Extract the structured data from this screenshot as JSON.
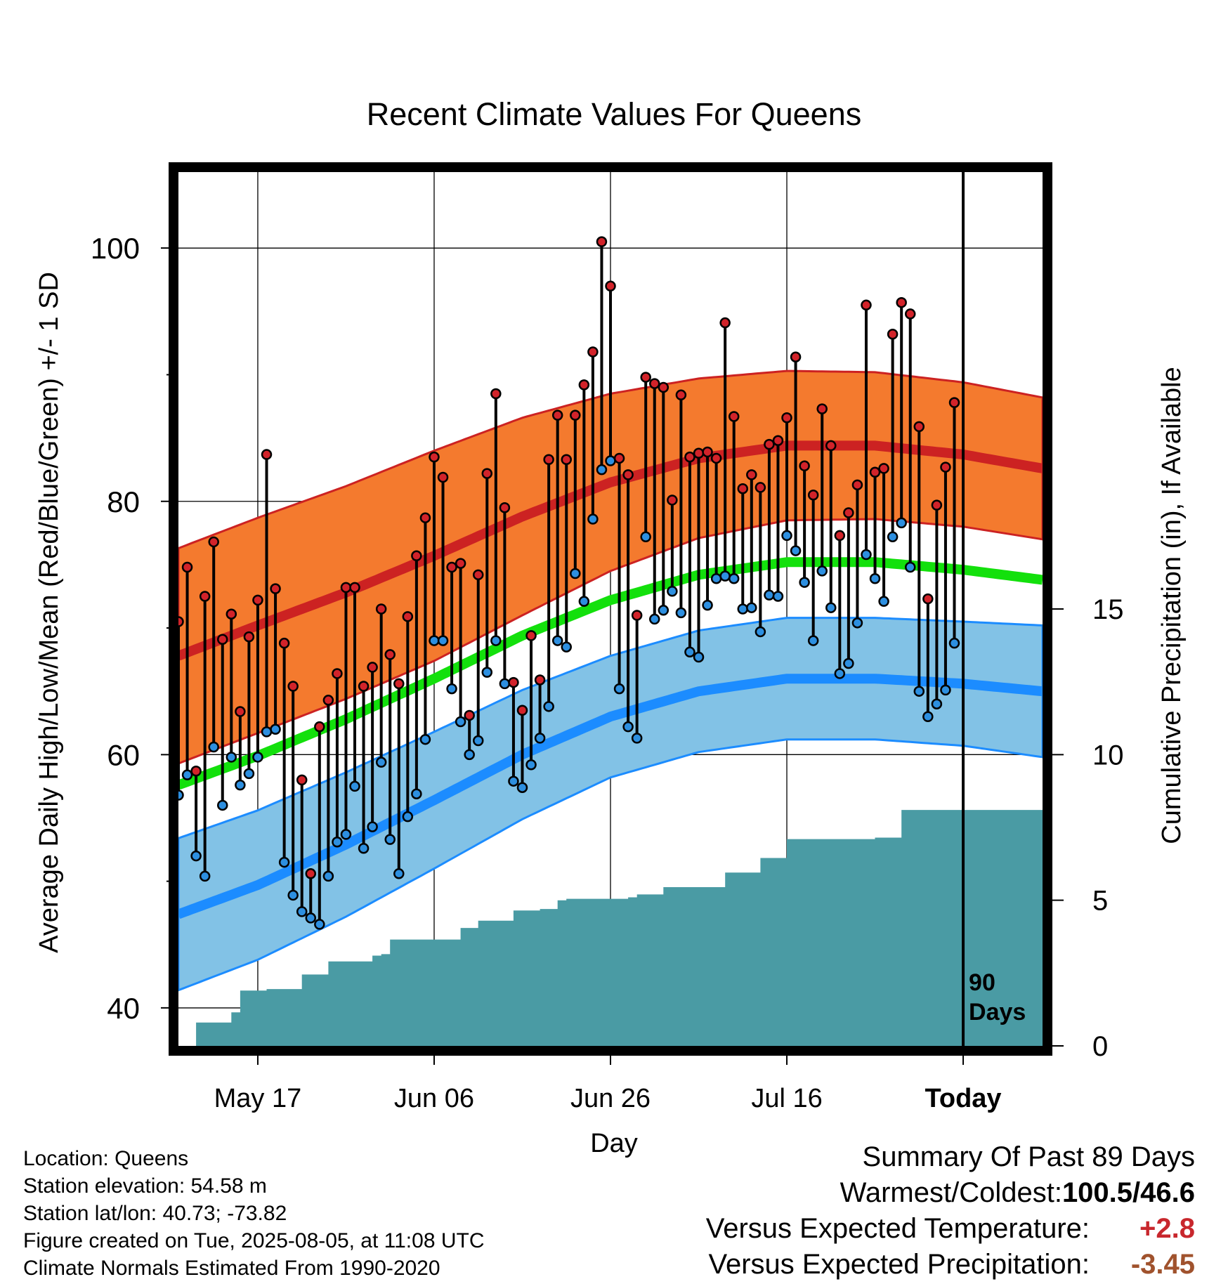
{
  "chart_data": {
    "type": "line",
    "title": "Recent Climate Values For Queens",
    "xlabel": "Day",
    "ylabel": "Average Daily High/Low/Mean (Red/Blue/Green) +/- 1 SD",
    "ylabel_right": "Cumulative Precipitation (in), If Available",
    "ylim": [
      37,
      106
    ],
    "y_ticks": [
      "100",
      "80",
      "60",
      "40"
    ],
    "y2lim": [
      0,
      30
    ],
    "y2_ticks": [
      "0",
      "5",
      "10",
      "15"
    ],
    "x_range_days": [
      -89,
      9
    ],
    "x_ticks": [
      {
        "label": "May 17",
        "day": -80
      },
      {
        "label": "Jun 06",
        "day": -60
      },
      {
        "label": "Jun 26",
        "day": -40
      },
      {
        "label": "Jul 16",
        "day": -20
      },
      {
        "label": "Today",
        "day": 0
      }
    ],
    "today_marker": {
      "label_line1": "90",
      "label_line2": "Days"
    },
    "grid": true,
    "colors": {
      "high_band": "#f47a2e",
      "high_line": "#cc2222",
      "low_band": "#82c2e6",
      "low_line": "#1c8cff",
      "mean_line": "#13e00c",
      "precip": "#4a9ba4",
      "high_dot": "#d2232a",
      "low_dot": "#2d8fe0"
    },
    "normals": {
      "days": [
        -89,
        -80,
        -70,
        -60,
        -50,
        -40,
        -30,
        -20,
        -10,
        0,
        9
      ],
      "high_mean": [
        67.8,
        70.2,
        72.8,
        75.7,
        78.8,
        81.5,
        83.4,
        84.4,
        84.4,
        83.7,
        82.6
      ],
      "high_sd": [
        8.5,
        8.5,
        8.4,
        8.3,
        7.8,
        7.0,
        6.3,
        5.9,
        5.8,
        5.7,
        5.6
      ],
      "low_mean": [
        47.4,
        49.7,
        52.9,
        56.4,
        60.0,
        63.0,
        65.0,
        66.0,
        66.0,
        65.6,
        65.0
      ],
      "low_sd": [
        6.0,
        5.9,
        5.7,
        5.4,
        5.1,
        4.8,
        4.8,
        4.8,
        4.8,
        4.9,
        5.2
      ],
      "mean": [
        57.6,
        59.9,
        62.8,
        66.0,
        69.4,
        72.2,
        74.2,
        75.2,
        75.2,
        74.6,
        73.8
      ]
    },
    "series": [
      {
        "name": "High",
        "days": [
          -89,
          -88,
          -87,
          -86,
          -85,
          -84,
          -83,
          -82,
          -81,
          -80,
          -79,
          -78,
          -77,
          -76,
          -75,
          -74,
          -73,
          -72,
          -71,
          -70,
          -69,
          -68,
          -67,
          -66,
          -65,
          -64,
          -63,
          -62,
          -61,
          -60,
          -59,
          -58,
          -57,
          -56,
          -55,
          -54,
          -53,
          -52,
          -51,
          -50,
          -49,
          -48,
          -47,
          -46,
          -45,
          -44,
          -43,
          -42,
          -41,
          -40,
          -39,
          -38,
          -37,
          -36,
          -35,
          -34,
          -33,
          -32,
          -31,
          -30,
          -29,
          -28,
          -27,
          -26,
          -25,
          -24,
          -23,
          -22,
          -21,
          -20,
          -19,
          -18,
          -17,
          -16,
          -15,
          -14,
          -13,
          -12,
          -11,
          -10,
          -9,
          -8,
          -7,
          -6,
          -5,
          -4,
          -3,
          -2,
          -1
        ],
        "values": [
          70.5,
          74.8,
          58.7,
          72.5,
          76.8,
          69.1,
          71.1,
          63.4,
          69.3,
          72.2,
          83.7,
          73.1,
          68.8,
          65.4,
          58.0,
          50.6,
          62.2,
          64.3,
          66.4,
          73.2,
          73.2,
          65.4,
          66.9,
          71.5,
          67.9,
          65.6,
          70.9,
          75.7,
          78.7,
          83.5,
          81.9,
          74.8,
          75.1,
          63.1,
          74.2,
          82.2,
          88.5,
          79.5,
          65.7,
          63.5,
          69.4,
          65.9,
          83.3,
          86.8,
          83.3,
          86.8,
          89.2,
          91.8,
          100.5,
          97.0,
          83.4,
          82.1,
          71.0,
          89.8,
          89.3,
          89.0,
          80.1,
          88.4,
          83.5,
          83.8,
          83.9,
          83.4,
          94.1,
          86.7,
          81.0,
          82.1,
          81.1,
          84.5,
          84.8,
          86.6,
          91.4,
          82.8,
          80.5,
          87.3,
          84.4,
          77.3,
          79.1,
          81.3,
          95.5,
          82.3,
          82.6,
          93.2,
          95.7,
          94.8,
          85.9,
          72.3,
          79.7,
          82.7,
          87.8
        ]
      },
      {
        "name": "Low",
        "days": [
          -89,
          -88,
          -87,
          -86,
          -85,
          -84,
          -83,
          -82,
          -81,
          -80,
          -79,
          -78,
          -77,
          -76,
          -75,
          -74,
          -73,
          -72,
          -71,
          -70,
          -69,
          -68,
          -67,
          -66,
          -65,
          -64,
          -63,
          -62,
          -61,
          -60,
          -59,
          -58,
          -57,
          -56,
          -55,
          -54,
          -53,
          -52,
          -51,
          -50,
          -49,
          -48,
          -47,
          -46,
          -45,
          -44,
          -43,
          -42,
          -41,
          -40,
          -39,
          -38,
          -37,
          -36,
          -35,
          -34,
          -33,
          -32,
          -31,
          -30,
          -29,
          -28,
          -27,
          -26,
          -25,
          -24,
          -23,
          -22,
          -21,
          -20,
          -19,
          -18,
          -17,
          -16,
          -15,
          -14,
          -13,
          -12,
          -11,
          -10,
          -9,
          -8,
          -7,
          -6,
          -5,
          -4,
          -3,
          -2,
          -1
        ],
        "values": [
          56.8,
          58.4,
          52.0,
          50.4,
          60.6,
          56.0,
          59.8,
          57.6,
          58.5,
          59.8,
          61.8,
          62.0,
          51.5,
          48.9,
          47.6,
          47.1,
          46.6,
          50.4,
          53.1,
          53.7,
          57.5,
          52.6,
          54.3,
          59.4,
          53.3,
          50.6,
          55.1,
          56.9,
          61.2,
          69.0,
          69.0,
          65.2,
          62.6,
          60.0,
          61.1,
          66.5,
          69.0,
          65.6,
          57.9,
          57.4,
          59.2,
          61.3,
          63.8,
          69.0,
          68.5,
          74.3,
          72.1,
          78.6,
          82.5,
          83.2,
          65.2,
          62.2,
          61.3,
          77.2,
          70.7,
          71.4,
          72.9,
          71.2,
          68.1,
          67.7,
          71.8,
          73.9,
          74.1,
          73.9,
          71.5,
          71.6,
          69.7,
          72.6,
          72.5,
          77.3,
          76.1,
          73.6,
          69.0,
          74.5,
          71.6,
          66.4,
          67.2,
          70.4,
          75.8,
          73.9,
          72.1,
          77.2,
          78.3,
          74.8,
          65.0,
          63.0,
          64.0,
          65.1,
          68.8
        ]
      }
    ],
    "precipitation": {
      "days": [
        -87,
        -84,
        -83,
        -82,
        -79,
        -76,
        -75,
        -72,
        -71,
        -68,
        -67,
        -66,
        -65,
        -64,
        -63,
        -58,
        -57,
        -56,
        -55,
        -52,
        -51,
        -48,
        -47,
        -46,
        -45,
        -44,
        -38,
        -37,
        -35,
        -34,
        -28,
        -27,
        -26,
        -25,
        -24,
        -23,
        -21,
        -20,
        -11,
        -10,
        -8,
        -7,
        9
      ],
      "values": [
        0.8,
        0.8,
        1.15,
        1.9,
        1.95,
        1.95,
        2.45,
        2.9,
        2.9,
        2.9,
        3.1,
        3.15,
        3.65,
        3.65,
        3.65,
        3.65,
        4.05,
        4.05,
        4.3,
        4.3,
        4.65,
        4.7,
        4.7,
        5.0,
        5.05,
        5.05,
        5.1,
        5.2,
        5.2,
        5.45,
        5.45,
        5.95,
        5.95,
        5.95,
        5.95,
        6.45,
        6.45,
        7.1,
        7.1,
        7.15,
        7.15,
        8.1,
        8.1
      ]
    }
  },
  "footer": {
    "location": "Location: Queens",
    "elevation": "Station elevation: 54.58 m",
    "latlon": "Station lat/lon: 40.73; -73.82",
    "created": "Figure created on Tue, 2025-08-05, at 11:08 UTC",
    "normals": "Climate Normals Estimated From 1990-2020"
  },
  "summary": {
    "heading": "Summary Of Past 89 Days",
    "warmest_label": "Warmest/Coldest:",
    "warmest_value": "100.5/46.6",
    "temp_label": "Versus Expected Temperature:",
    "temp_value": "+2.8",
    "temp_color": "#c8272d",
    "precip_label": "Versus Expected Precipitation:",
    "precip_value": "-3.45",
    "precip_color": "#a0522d"
  }
}
